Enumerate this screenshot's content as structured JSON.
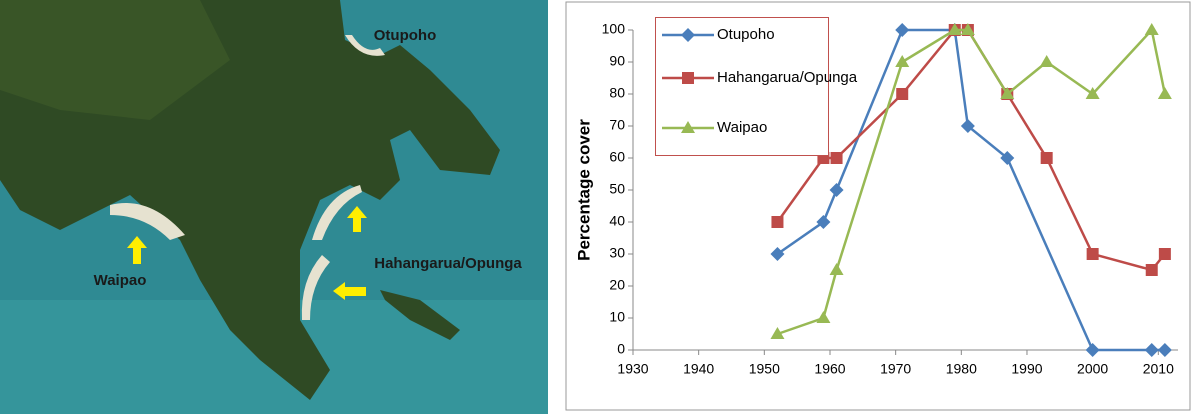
{
  "map": {
    "labels": [
      "Otupoho",
      "Waipao",
      "Hahangarua/Opunga"
    ]
  },
  "chart_data": {
    "type": "line",
    "ylabel": "Percentage cover",
    "xlim": [
      1930,
      2013
    ],
    "xticks": [
      1930,
      1940,
      1950,
      1960,
      1970,
      1980,
      1990,
      2000,
      2010
    ],
    "ylim": [
      0,
      100
    ],
    "yticks": [
      0,
      10,
      20,
      30,
      40,
      50,
      60,
      70,
      80,
      90,
      100
    ],
    "grid": false,
    "series": [
      {
        "name": "Otupoho",
        "color": "#4a7ebb",
        "marker": "diamond",
        "x": [
          1952,
          1959,
          1961,
          1971,
          1979,
          1981,
          1987,
          2000,
          2009,
          2011
        ],
        "values": [
          30,
          40,
          50,
          100,
          100,
          70,
          60,
          0,
          0,
          0
        ]
      },
      {
        "name": "Hahangarua/Opunga",
        "color": "#be4b48",
        "marker": "square",
        "x": [
          1952,
          1959,
          1961,
          1971,
          1979,
          1981,
          1987,
          1993,
          2000,
          2009,
          2011
        ],
        "values": [
          40,
          60,
          60,
          80,
          100,
          100,
          80,
          60,
          30,
          25,
          30
        ]
      },
      {
        "name": "Waipao",
        "color": "#98b954",
        "marker": "triangle",
        "x": [
          1952,
          1959,
          1961,
          1971,
          1979,
          1981,
          1987,
          1993,
          2000,
          2009,
          2011
        ],
        "values": [
          5,
          10,
          25,
          90,
          100,
          100,
          80,
          90,
          80,
          100,
          80
        ]
      }
    ]
  }
}
